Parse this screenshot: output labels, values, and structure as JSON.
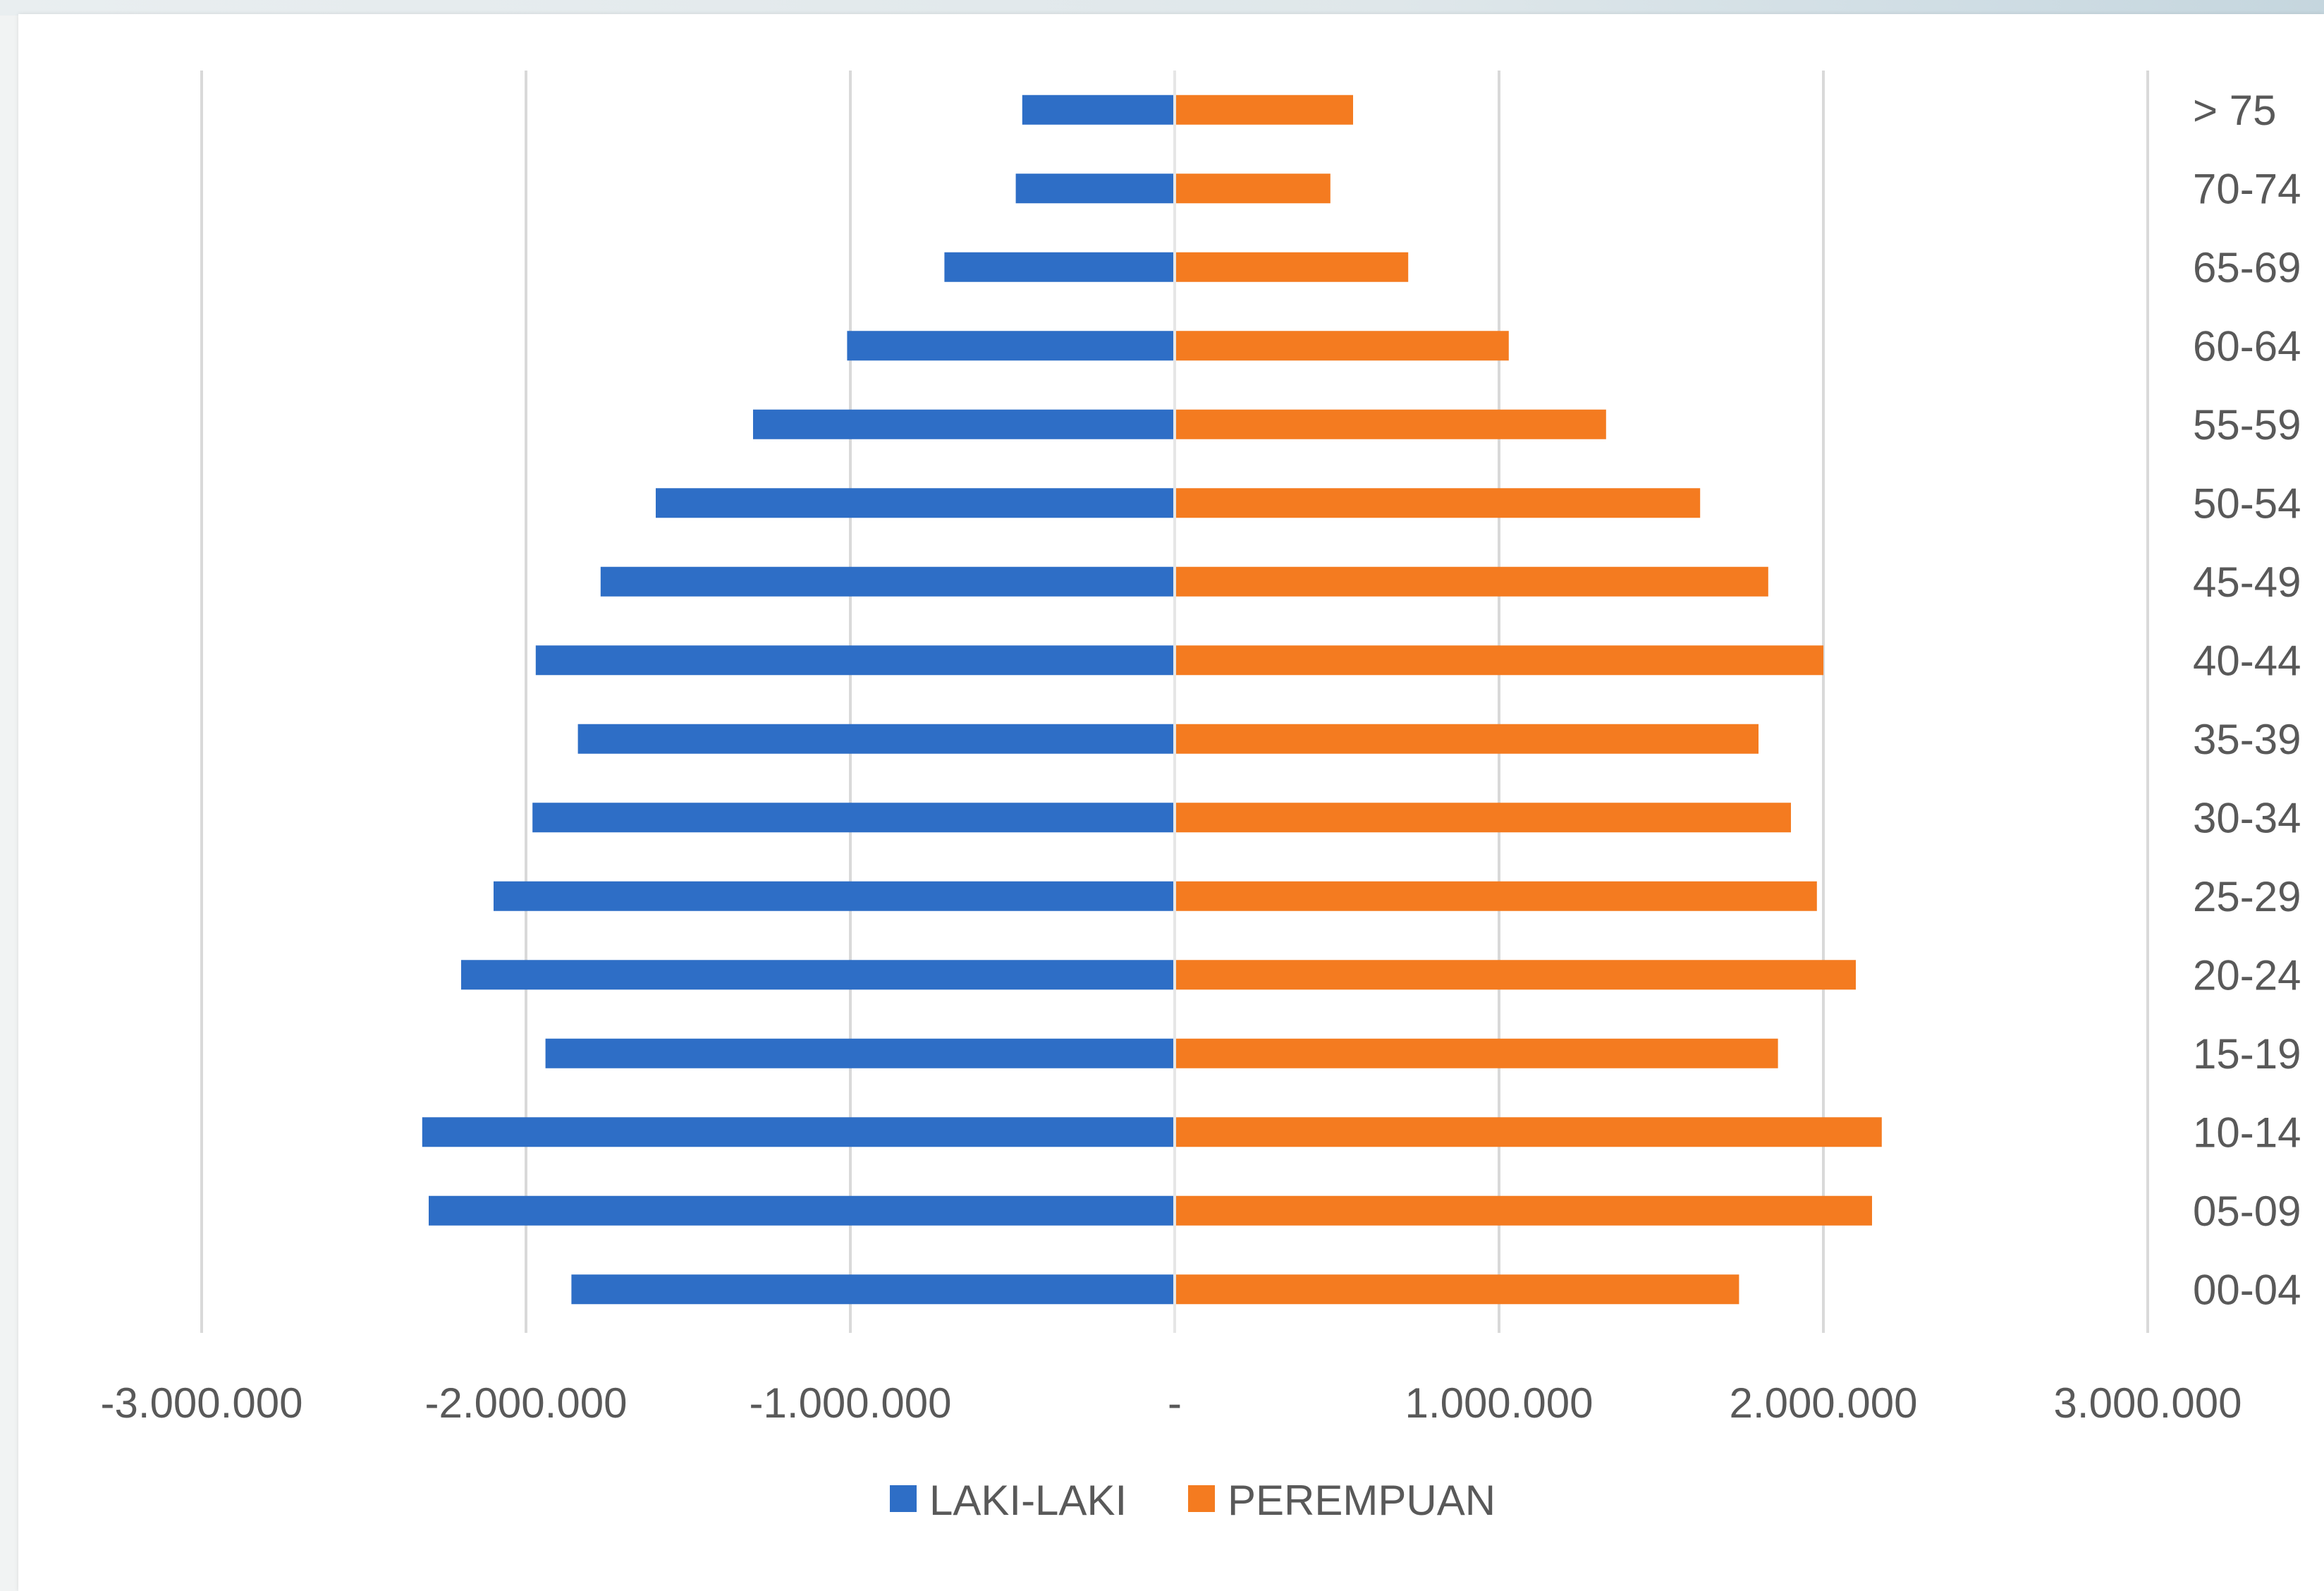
{
  "chart_data": {
    "type": "bar",
    "orientation": "horizontal",
    "categories": [
      "00-04",
      "05-09",
      "10-14",
      "15-19",
      "20-24",
      "25-29",
      "30-34",
      "35-39",
      "40-44",
      "45-49",
      "50-54",
      "55-59",
      "60-64",
      "65-69",
      "70-74",
      "> 75"
    ],
    "series": [
      {
        "name": "LAKI-LAKI",
        "color": "#2e6ec6",
        "values": [
          -1860000,
          -2300000,
          -2320000,
          -1940000,
          -2200000,
          -2100000,
          -1980000,
          -1840000,
          -1970000,
          -1770000,
          -1600000,
          -1300000,
          -1010000,
          -710000,
          -490000,
          -470000
        ]
      },
      {
        "name": "PEREMPUAN",
        "color": "#f47b20",
        "values": [
          1740000,
          2150000,
          2180000,
          1860000,
          2100000,
          1980000,
          1900000,
          1800000,
          2000000,
          1830000,
          1620000,
          1330000,
          1030000,
          720000,
          480000,
          550000
        ]
      }
    ],
    "xlim": [
      -3000000,
      3000000
    ],
    "x_ticks": [
      -3000000,
      -2000000,
      -1000000,
      0,
      1000000,
      2000000,
      3000000
    ],
    "x_tick_labels": [
      "-3.000.000",
      "-2.000.000",
      "-1.000.000",
      "-",
      "1.000.000",
      "2.000.000",
      "3.000.000"
    ],
    "grid": true,
    "category_axis_side": "right",
    "legend_position": "bottom",
    "grid_color": "#d9d9d9",
    "text_color": "#595959"
  }
}
